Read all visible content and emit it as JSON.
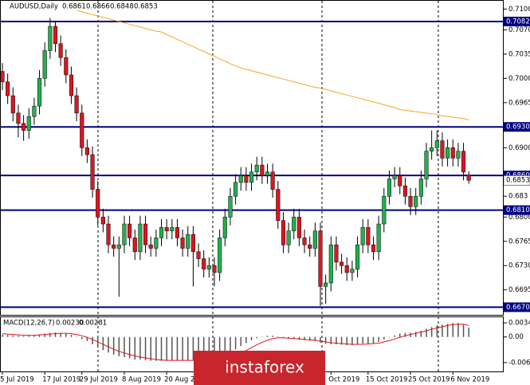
{
  "chart_data": [
    {
      "type": "candlestick",
      "symbol": "AUDUSD,Daily",
      "up_color": "#22b14c",
      "down_color": "#e0141e",
      "ylim": [
        0.6659,
        0.7113
      ],
      "yticks": [
        {
          "value": 0.71,
          "label": "0.7100"
        },
        {
          "value": 0.707,
          "label": "0.7070"
        },
        0.7035,
        {
          "value": 0.7,
          "label": "0.7000"
        },
        0.6965,
        {
          "value": 0.69,
          "label": "0.6900"
        },
        0.683,
        {
          "value": 0.68,
          "label": "0.6800"
        },
        0.6765,
        {
          "value": 0.673,
          "label": "0.6730"
        },
        0.6695
      ],
      "levels": [
        0.7082,
        {
          "value": 0.693,
          "label": "0.6930"
        },
        {
          "value": 0.686,
          "label": "0.6860"
        },
        {
          "value": 0.681,
          "label": "0.6810"
        },
        {
          "value": 0.667,
          "label": "0.6670"
        }
      ],
      "level_color": "#000080",
      "categories": [
        "5 Jul 2019",
        null,
        null,
        null,
        null,
        null,
        null,
        null,
        "17 Jul 2019",
        null,
        null,
        null,
        null,
        null,
        null,
        "29 Jul 2019",
        null,
        null,
        null,
        null,
        null,
        null,
        null,
        "8 Aug 2019",
        null,
        null,
        null,
        null,
        null,
        null,
        null,
        "20 Aug 2019",
        null,
        null,
        null,
        null,
        null,
        null,
        null,
        null,
        null,
        null,
        null,
        null,
        null,
        null,
        null,
        null,
        null,
        null,
        null,
        null,
        null,
        null,
        null,
        null,
        null,
        null,
        null,
        null,
        null,
        null,
        "Oct 2019",
        null,
        null,
        null,
        null,
        null,
        null,
        "15 Oct 2019",
        null,
        null,
        null,
        null,
        null,
        null,
        null,
        "25 Oct 2019",
        null,
        null,
        null,
        null,
        null,
        null,
        null,
        "6 Nov 2019",
        null,
        null,
        null
      ],
      "open": [
        0.701,
        0.6995,
        0.6975,
        0.695,
        0.6935,
        0.6925,
        0.6945,
        0.696,
        0.7,
        0.704,
        0.7075,
        0.705,
        0.703,
        0.7005,
        0.6975,
        0.695,
        0.69,
        0.689,
        0.684,
        0.68,
        0.679,
        0.676,
        0.6755,
        0.676,
        0.679,
        0.677,
        0.675,
        0.679,
        0.676,
        0.6755,
        0.677,
        0.6785,
        0.678,
        0.6785,
        0.677,
        0.6755,
        0.6775,
        0.675,
        0.674,
        0.6725,
        0.673,
        0.672,
        0.677,
        0.68,
        0.683,
        0.685,
        0.686,
        0.685,
        0.6865,
        0.6875,
        0.686,
        0.6865,
        0.684,
        0.6795,
        0.676,
        0.678,
        0.68,
        0.677,
        0.676,
        0.6755,
        0.678,
        0.67,
        0.6705,
        0.676,
        0.6735,
        0.673,
        0.672,
        0.6725,
        0.676,
        0.6785,
        0.676,
        0.675,
        0.679,
        0.683,
        0.6855,
        0.686,
        0.6845,
        0.683,
        0.6815,
        0.683,
        0.6855,
        0.6895,
        0.69,
        0.691,
        0.6885,
        0.69,
        0.6885,
        0.6895,
        0.6861
      ],
      "high": [
        0.7022,
        0.7007,
        0.6987,
        0.6962,
        0.6947,
        0.6957,
        0.6972,
        0.7012,
        0.7052,
        0.7087,
        0.7082,
        0.7062,
        0.7042,
        0.7017,
        0.6987,
        0.6962,
        0.6912,
        0.6902,
        0.6852,
        0.6812,
        0.6802,
        0.6772,
        0.6772,
        0.6802,
        0.6802,
        0.6782,
        0.6802,
        0.6802,
        0.6772,
        0.6782,
        0.6797,
        0.6797,
        0.6797,
        0.6797,
        0.6782,
        0.6787,
        0.6787,
        0.6762,
        0.6752,
        0.6742,
        0.6742,
        0.6782,
        0.6812,
        0.6842,
        0.6862,
        0.6872,
        0.6872,
        0.6877,
        0.6887,
        0.6887,
        0.6877,
        0.6877,
        0.6852,
        0.6807,
        0.6792,
        0.6812,
        0.6812,
        0.6782,
        0.6772,
        0.6792,
        0.6792,
        0.6717,
        0.6772,
        0.6772,
        0.6747,
        0.6742,
        0.6737,
        0.6772,
        0.6797,
        0.6797,
        0.6772,
        0.6802,
        0.6842,
        0.6867,
        0.6872,
        0.6872,
        0.6857,
        0.6842,
        0.6842,
        0.6867,
        0.6907,
        0.6925,
        0.6925,
        0.6922,
        0.6912,
        0.6912,
        0.6907,
        0.6907,
        0.6866
      ],
      "low": [
        0.6983,
        0.6963,
        0.6938,
        0.6915,
        0.691,
        0.6913,
        0.6933,
        0.6948,
        0.6988,
        0.7028,
        0.7038,
        0.7018,
        0.6993,
        0.6963,
        0.6938,
        0.6888,
        0.6878,
        0.6828,
        0.6788,
        0.6778,
        0.6748,
        0.6743,
        0.6685,
        0.6748,
        0.6758,
        0.6738,
        0.6738,
        0.6748,
        0.6743,
        0.6743,
        0.6758,
        0.6768,
        0.6768,
        0.6758,
        0.6743,
        0.6743,
        0.67,
        0.6728,
        0.6713,
        0.6713,
        0.67,
        0.6708,
        0.6758,
        0.6788,
        0.6818,
        0.6838,
        0.6838,
        0.6838,
        0.6853,
        0.6848,
        0.6848,
        0.6828,
        0.6783,
        0.6748,
        0.6748,
        0.6768,
        0.6758,
        0.6748,
        0.6743,
        0.6743,
        0.6672,
        0.6675,
        0.6693,
        0.6723,
        0.6718,
        0.6708,
        0.6708,
        0.6713,
        0.6748,
        0.6748,
        0.6738,
        0.6738,
        0.6778,
        0.6818,
        0.6843,
        0.6833,
        0.6818,
        0.6803,
        0.6803,
        0.6818,
        0.6843,
        0.6883,
        0.6888,
        0.6873,
        0.6873,
        0.6873,
        0.6873,
        0.6853,
        0.6848
      ],
      "close": [
        0.6995,
        0.6975,
        0.695,
        0.6935,
        0.6925,
        0.6945,
        0.696,
        0.7,
        0.704,
        0.7075,
        0.705,
        0.703,
        0.7005,
        0.6975,
        0.695,
        0.69,
        0.689,
        0.684,
        0.68,
        0.679,
        0.676,
        0.6755,
        0.676,
        0.679,
        0.677,
        0.675,
        0.679,
        0.676,
        0.6755,
        0.677,
        0.6785,
        0.678,
        0.6785,
        0.677,
        0.6755,
        0.6775,
        0.675,
        0.674,
        0.6725,
        0.673,
        0.672,
        0.677,
        0.68,
        0.683,
        0.685,
        0.686,
        0.685,
        0.6865,
        0.6875,
        0.686,
        0.6865,
        0.684,
        0.6795,
        0.676,
        0.678,
        0.68,
        0.677,
        0.676,
        0.6755,
        0.678,
        0.67,
        0.6705,
        0.676,
        0.6735,
        0.673,
        0.672,
        0.6725,
        0.676,
        0.6785,
        0.676,
        0.675,
        0.679,
        0.683,
        0.6855,
        0.686,
        0.6845,
        0.683,
        0.6815,
        0.683,
        0.6855,
        0.6895,
        0.69,
        0.691,
        0.6885,
        0.69,
        0.6885,
        0.6895,
        0.6865,
        0.6853
      ],
      "overlays": [
        {
          "color": "#f5a623",
          "values": [
            null,
            null,
            null,
            null,
            null,
            null,
            null,
            null,
            null,
            null,
            null,
            null,
            null,
            null,
            0.7098,
            0.7096,
            0.7094,
            0.7092,
            0.709,
            0.7088,
            0.7086,
            0.7084,
            0.7082,
            0.708,
            0.7078,
            0.7076,
            0.7074,
            0.7072,
            0.707,
            0.7068,
            0.7067,
            0.7063,
            0.706,
            0.7056,
            0.7053,
            0.7049,
            0.7046,
            0.7042,
            0.7039,
            0.7035,
            0.7032,
            0.7028,
            0.7025,
            0.7021,
            0.7018,
            0.7015,
            0.7013,
            0.7011,
            0.7009,
            0.7007,
            0.7005,
            0.7003,
            0.7001,
            0.6999,
            0.6997,
            0.6995,
            0.6993,
            0.6991,
            0.6989,
            0.6987,
            0.6986,
            0.6984,
            0.6982,
            0.698,
            0.6978,
            0.6976,
            0.6974,
            0.6972,
            0.697,
            0.6968,
            0.6966,
            0.6964,
            0.6962,
            0.696,
            0.6958,
            0.6955,
            0.6954,
            0.6953,
            0.6952,
            0.6951,
            0.695,
            0.6949,
            0.6948,
            0.6946,
            0.6945,
            0.6944,
            0.6943,
            0.6942,
            0.694
          ]
        }
      ],
      "watermark": "instaforex"
    },
    {
      "type": "macd",
      "title": "MACD(12,26,7)",
      "readout": [
        {
          "value": 0.0023,
          "label": "0.00230"
        },
        0.00281
      ],
      "ylim": [
        -0.0084,
        0.0048
      ],
      "yticks": [
        0.00343,
        {
          "value": 0,
          "label": "0.00"
        },
        -0.00624
      ],
      "histogram_color": "#555555",
      "signal_color": "#e0141e",
      "histogram": [
        0.0006,
        0.0005,
        0.0004,
        0.0003,
        0.0002,
        0.0003,
        0.0004,
        0.0006,
        0.0008,
        0.001,
        0.0011,
        0.001,
        0.0008,
        0.0005,
        0.0001,
        -0.0005,
        -0.001,
        -0.0018,
        -0.0026,
        -0.0032,
        -0.0038,
        -0.0043,
        -0.0047,
        -0.0049,
        -0.0052,
        -0.0055,
        -0.0055,
        -0.0057,
        -0.0058,
        -0.0058,
        -0.0058,
        -0.0058,
        -0.0057,
        -0.0057,
        -0.0058,
        -0.0057,
        -0.0058,
        -0.0059,
        -0.006,
        -0.0058,
        -0.0059,
        -0.0055,
        -0.0048,
        -0.004,
        -0.003,
        -0.0022,
        -0.0015,
        -0.0008,
        -0.0003,
        0.0001,
        0.0003,
        0.0003,
        0.0001,
        -0.0002,
        -0.0004,
        -0.0005,
        -0.0007,
        -0.0008,
        -0.0009,
        -0.001,
        -0.0014,
        -0.0017,
        -0.0018,
        -0.0018,
        -0.0019,
        -0.002,
        -0.002,
        -0.0018,
        -0.0016,
        -0.0016,
        -0.0015,
        -0.0012,
        -0.0006,
        -0.0001,
        0.0004,
        0.0008,
        0.001,
        0.001,
        0.0012,
        0.0015,
        0.002,
        0.0024,
        0.0028,
        0.003,
        0.0032,
        0.0034,
        0.0034,
        0.003,
        0.0023
      ],
      "signal": [
        0.0008,
        0.0007,
        0.0006,
        0.0005,
        0.0004,
        0.0004,
        0.0004,
        0.0005,
        0.0006,
        0.0007,
        0.0008,
        0.0009,
        0.0009,
        0.0008,
        0.0006,
        0.0003,
        -0.0001,
        -0.0006,
        -0.0012,
        -0.0018,
        -0.0024,
        -0.003,
        -0.0035,
        -0.0039,
        -0.0043,
        -0.0046,
        -0.0049,
        -0.0051,
        -0.0053,
        -0.0055,
        -0.0056,
        -0.0057,
        -0.0057,
        -0.0057,
        -0.0057,
        -0.0057,
        -0.0057,
        -0.0058,
        -0.0058,
        -0.0058,
        -0.0058,
        -0.0057,
        -0.0055,
        -0.0051,
        -0.0046,
        -0.004,
        -0.0033,
        -0.0026,
        -0.0019,
        -0.0013,
        -0.0008,
        -0.0004,
        -0.0002,
        -0.0002,
        -0.0003,
        -0.0004,
        -0.0005,
        -0.0006,
        -0.0007,
        -0.0008,
        -0.001,
        -0.0012,
        -0.0014,
        -0.0015,
        -0.0016,
        -0.0017,
        -0.0018,
        -0.0018,
        -0.0018,
        -0.0017,
        -0.0016,
        -0.0015,
        -0.0012,
        -0.0009,
        -0.0005,
        -0.0001,
        0.0003,
        0.0006,
        0.0009,
        0.0012,
        0.0015,
        0.0019,
        0.0022,
        0.0025,
        0.0028,
        0.003,
        0.0031,
        0.0031,
        0.0028
      ]
    }
  ]
}
